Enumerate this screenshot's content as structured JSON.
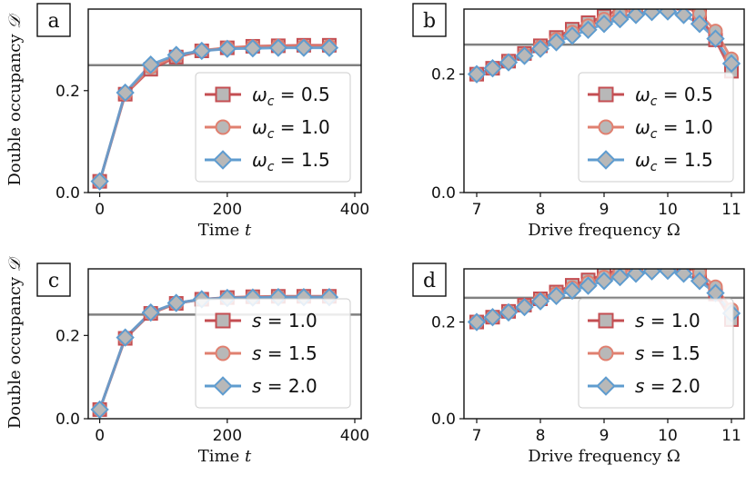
{
  "colors": {
    "series1": "#c44e52",
    "series2": "#e08070",
    "series3": "#5f9ccf",
    "reference": "#808080",
    "marker_fill": "#b8b8b8"
  },
  "chart_data": [
    {
      "id": "a",
      "type": "line",
      "panel_label": "a",
      "xlabel": "Time",
      "xlabel_var": "t",
      "ylabel": "Double occupancy",
      "ylabel_var": "𝒟",
      "xlim": [
        -18,
        410
      ],
      "ylim": [
        0,
        0.36
      ],
      "xticks": [
        0,
        200,
        400
      ],
      "yticks": [
        0.0,
        0.2
      ],
      "ytick_labels": [
        "0.0",
        "0.2"
      ],
      "reference_line": 0.25,
      "legend_position": "lower-right",
      "x": [
        0,
        40,
        80,
        120,
        160,
        200,
        240,
        280,
        320,
        360
      ],
      "series": [
        {
          "name": "ωc = 0.5",
          "symbol": "ω",
          "sub": "c",
          "value": "= 0.5",
          "marker": "square",
          "color_key": "series1",
          "values": [
            0.022,
            0.193,
            0.242,
            0.266,
            0.278,
            0.284,
            0.287,
            0.288,
            0.289,
            0.289
          ]
        },
        {
          "name": "ωc = 1.0",
          "symbol": "ω",
          "sub": "c",
          "value": "= 1.0",
          "marker": "circle",
          "color_key": "series2",
          "values": [
            0.022,
            0.194,
            0.246,
            0.268,
            0.279,
            0.284,
            0.286,
            0.287,
            0.287,
            0.287
          ]
        },
        {
          "name": "ωc = 1.5",
          "symbol": "ω",
          "sub": "c",
          "value": "= 1.5",
          "marker": "diamond",
          "color_key": "series3",
          "values": [
            0.022,
            0.196,
            0.251,
            0.27,
            0.278,
            0.282,
            0.283,
            0.284,
            0.284,
            0.284
          ]
        }
      ]
    },
    {
      "id": "b",
      "type": "line",
      "panel_label": "b",
      "xlabel": "Drive frequency",
      "xlabel_var": "Ω",
      "ylabel": "",
      "xlim": [
        6.8,
        11.2
      ],
      "ylim": [
        0,
        0.31
      ],
      "xticks": [
        7,
        8,
        9,
        10,
        11
      ],
      "yticks": [
        0.0,
        0.2
      ],
      "ytick_labels": [
        "0.0",
        "0.2"
      ],
      "reference_line": 0.25,
      "legend_position": "lower-right",
      "x": [
        7.0,
        7.25,
        7.5,
        7.75,
        8.0,
        8.25,
        8.5,
        8.75,
        9.0,
        9.25,
        9.5,
        9.75,
        10.0,
        10.25,
        10.5,
        10.75,
        11.0
      ],
      "series": [
        {
          "name": "ωc = 0.5",
          "symbol": "ω",
          "sub": "c",
          "value": "= 0.5",
          "marker": "square",
          "color_key": "series1",
          "values": [
            0.2,
            0.21,
            0.222,
            0.235,
            0.248,
            0.262,
            0.276,
            0.287,
            0.298,
            0.31,
            0.316,
            0.322,
            0.325,
            0.32,
            0.298,
            0.258,
            0.205
          ]
        },
        {
          "name": "ωc = 1.0",
          "symbol": "ω",
          "sub": "c",
          "value": "= 1.0",
          "marker": "circle",
          "color_key": "series2",
          "values": [
            0.2,
            0.21,
            0.221,
            0.233,
            0.246,
            0.259,
            0.271,
            0.282,
            0.293,
            0.303,
            0.31,
            0.318,
            0.32,
            0.318,
            0.302,
            0.273,
            0.226
          ]
        },
        {
          "name": "ωc = 1.5",
          "symbol": "ω",
          "sub": "c",
          "value": "= 1.5",
          "marker": "diamond",
          "color_key": "series3",
          "values": [
            0.2,
            0.21,
            0.22,
            0.231,
            0.243,
            0.254,
            0.265,
            0.275,
            0.285,
            0.293,
            0.3,
            0.305,
            0.306,
            0.3,
            0.285,
            0.26,
            0.218
          ]
        }
      ]
    },
    {
      "id": "c",
      "type": "line",
      "panel_label": "c",
      "xlabel": "Time",
      "xlabel_var": "t",
      "ylabel": "Double occupancy",
      "ylabel_var": "𝒟",
      "xlim": [
        -18,
        410
      ],
      "ylim": [
        0,
        0.36
      ],
      "xticks": [
        0,
        200,
        400
      ],
      "yticks": [
        0.0,
        0.2
      ],
      "ytick_labels": [
        "0.0",
        "0.2"
      ],
      "reference_line": 0.25,
      "legend_position": "lower-right",
      "x": [
        0,
        40,
        80,
        120,
        160,
        200,
        240,
        280,
        320,
        360
      ],
      "series": [
        {
          "name": "s = 1.0",
          "symbol": "s",
          "sub": "",
          "value": "= 1.0",
          "marker": "square",
          "color_key": "series1",
          "values": [
            0.022,
            0.193,
            0.253,
            0.277,
            0.287,
            0.291,
            0.293,
            0.294,
            0.294,
            0.294
          ]
        },
        {
          "name": "s = 1.5",
          "symbol": "s",
          "sub": "",
          "value": "= 1.5",
          "marker": "circle",
          "color_key": "series2",
          "values": [
            0.022,
            0.194,
            0.254,
            0.277,
            0.287,
            0.29,
            0.292,
            0.293,
            0.293,
            0.293
          ]
        },
        {
          "name": "s = 2.0",
          "symbol": "s",
          "sub": "",
          "value": "= 2.0",
          "marker": "diamond",
          "color_key": "series3",
          "values": [
            0.022,
            0.195,
            0.255,
            0.278,
            0.287,
            0.29,
            0.291,
            0.292,
            0.292,
            0.292
          ]
        }
      ]
    },
    {
      "id": "d",
      "type": "line",
      "panel_label": "d",
      "xlabel": "Drive frequency",
      "xlabel_var": "Ω",
      "ylabel": "",
      "xlim": [
        6.8,
        11.2
      ],
      "ylim": [
        0,
        0.31
      ],
      "xticks": [
        7,
        8,
        9,
        10,
        11
      ],
      "yticks": [
        0.0,
        0.2
      ],
      "ytick_labels": [
        "0.0",
        "0.2"
      ],
      "reference_line": 0.25,
      "legend_position": "lower-right",
      "x": [
        7.0,
        7.25,
        7.5,
        7.75,
        8.0,
        8.25,
        8.5,
        8.75,
        9.0,
        9.25,
        9.5,
        9.75,
        10.0,
        10.25,
        10.5,
        10.75,
        11.0
      ],
      "series": [
        {
          "name": "s = 1.0",
          "symbol": "s",
          "sub": "",
          "value": "= 1.0",
          "marker": "square",
          "color_key": "series1",
          "values": [
            0.2,
            0.21,
            0.222,
            0.235,
            0.248,
            0.262,
            0.276,
            0.287,
            0.298,
            0.31,
            0.316,
            0.322,
            0.325,
            0.32,
            0.298,
            0.258,
            0.205
          ]
        },
        {
          "name": "s = 1.5",
          "symbol": "s",
          "sub": "",
          "value": "= 1.5",
          "marker": "circle",
          "color_key": "series2",
          "values": [
            0.2,
            0.21,
            0.221,
            0.233,
            0.246,
            0.259,
            0.271,
            0.282,
            0.293,
            0.303,
            0.31,
            0.318,
            0.32,
            0.318,
            0.302,
            0.273,
            0.226
          ]
        },
        {
          "name": "s = 2.0",
          "symbol": "s",
          "sub": "",
          "value": "= 2.0",
          "marker": "diamond",
          "color_key": "series3",
          "values": [
            0.2,
            0.21,
            0.22,
            0.231,
            0.243,
            0.254,
            0.265,
            0.275,
            0.285,
            0.293,
            0.3,
            0.305,
            0.306,
            0.3,
            0.285,
            0.26,
            0.218
          ]
        }
      ]
    }
  ]
}
